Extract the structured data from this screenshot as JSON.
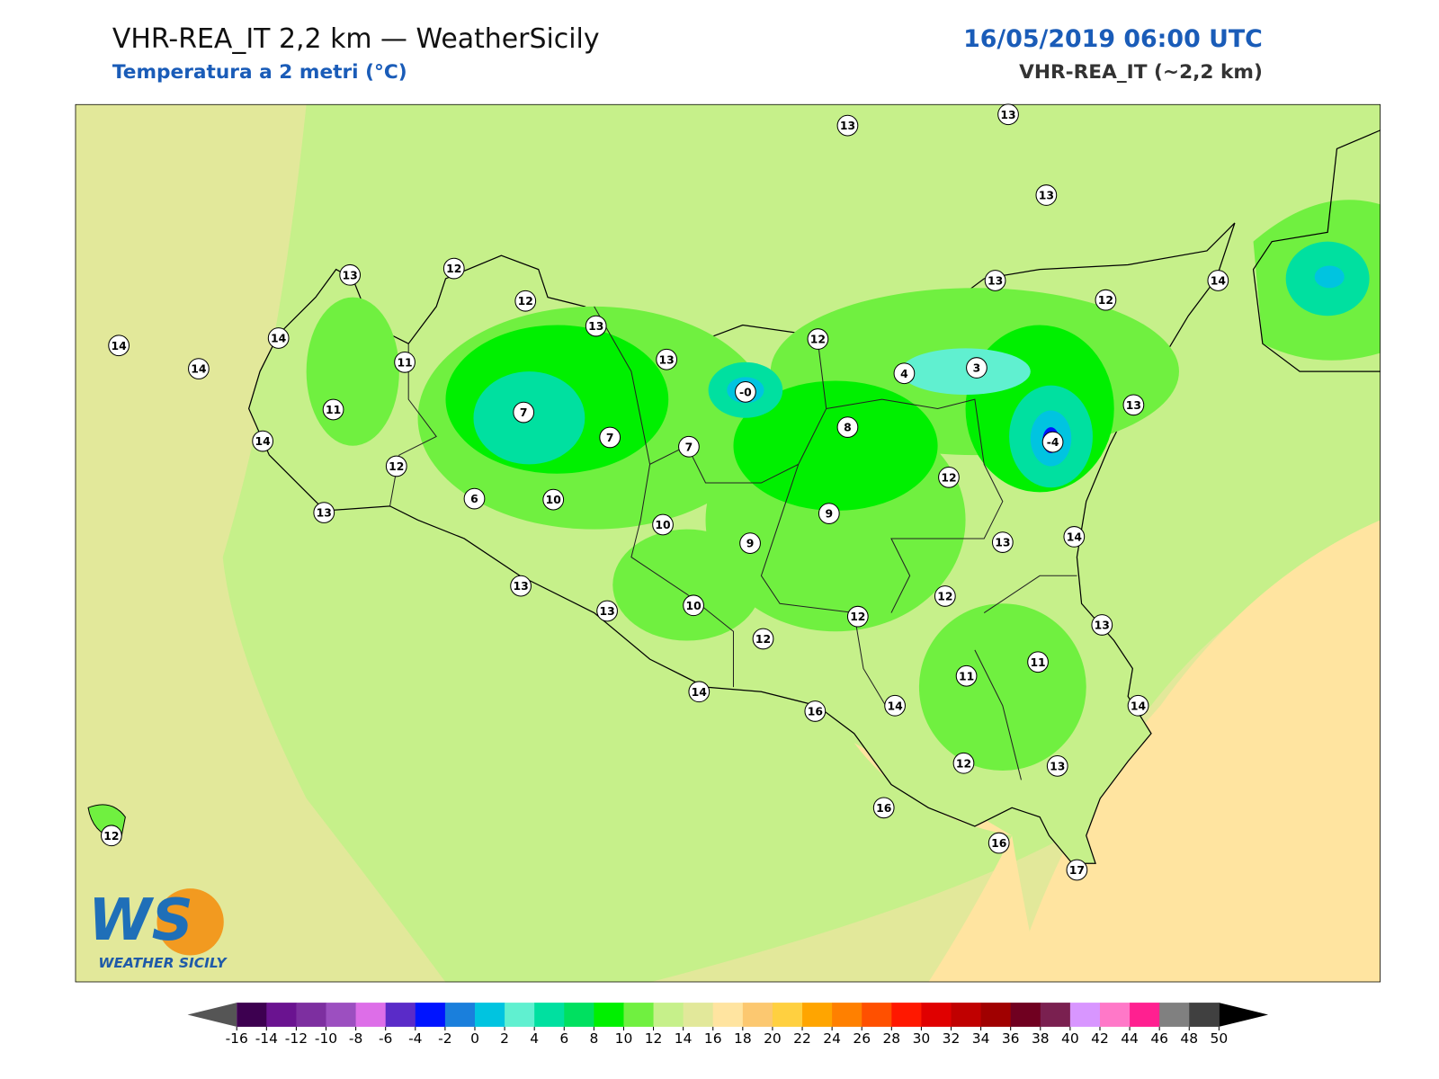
{
  "header": {
    "title": "VHR-REA_IT 2,2 km — WeatherSicily",
    "subtitle": "Temperatura a 2 metri (°C)",
    "datetime": "16/05/2019 06:00 UTC",
    "model": "VHR-REA_IT (~2,2 km)"
  },
  "stations": [
    "13",
    "13",
    "13",
    "13",
    "12",
    "12",
    "13",
    "14",
    "14",
    "14",
    "11",
    "13",
    "12",
    "13",
    "12",
    "14",
    "-0",
    "4",
    "3",
    "13",
    "11",
    "7",
    "7",
    "7",
    "8",
    "-4",
    "14",
    "12",
    "6",
    "10",
    "12",
    "13",
    "9",
    "10",
    "9",
    "13",
    "14",
    "13",
    "13",
    "10",
    "12",
    "12",
    "12",
    "13",
    "11",
    "11",
    "14",
    "16",
    "14",
    "14",
    "12",
    "13",
    "16",
    "16",
    "17",
    "12"
  ],
  "logo": {
    "mark": "WS",
    "text": "WEATHER SICILY"
  },
  "colorbar": {
    "ticks": [
      -16,
      -14,
      -12,
      -10,
      -8,
      -6,
      -4,
      -2,
      0,
      2,
      4,
      6,
      8,
      10,
      12,
      14,
      16,
      18,
      20,
      22,
      24,
      26,
      28,
      30,
      32,
      34,
      36,
      38,
      40,
      42,
      44,
      46,
      48,
      50
    ],
    "colors": [
      "#3d0050",
      "#6a1390",
      "#7d2fa0",
      "#9c4fc0",
      "#dd6ee8",
      "#5a2bc8",
      "#0014ff",
      "#1a7fdc",
      "#00c4e0",
      "#60f0d0",
      "#00e0a0",
      "#00e060",
      "#00f000",
      "#70f040",
      "#c6f08a",
      "#e2e89a",
      "#ffe4a0",
      "#fcc870",
      "#ffd040",
      "#ffa500",
      "#ff8000",
      "#ff5000",
      "#ff1800",
      "#e00000",
      "#c00000",
      "#a00000",
      "#700020",
      "#7a2050",
      "#d896ff",
      "#ff78c8",
      "#ff2090",
      "#808080",
      "#404040"
    ],
    "under_color": "#555555",
    "over_color": "#000000"
  }
}
